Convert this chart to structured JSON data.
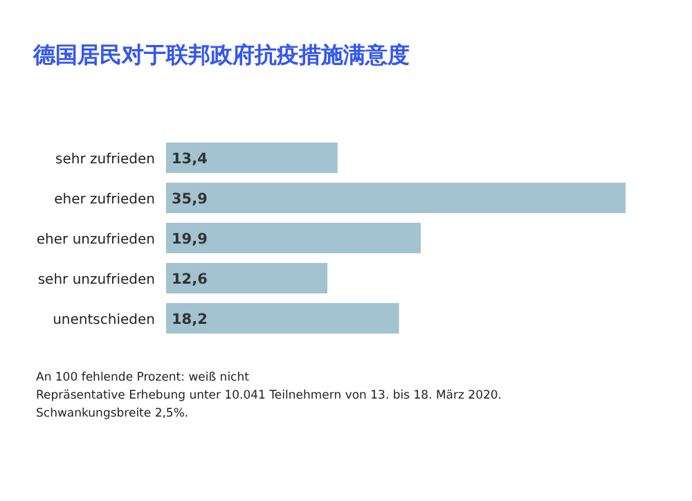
{
  "chart_data": {
    "type": "bar",
    "orientation": "horizontal",
    "title": "德国居民对于联邦政府抗疫措施满意度",
    "categories": [
      "sehr zufrieden",
      "eher zufrieden",
      "eher unzufrieden",
      "sehr unzufrieden",
      "unentschieden"
    ],
    "values": [
      13.4,
      35.9,
      19.9,
      12.6,
      18.2
    ],
    "value_labels": [
      "13,4",
      "35,9",
      "19,9",
      "12,6",
      "18,2"
    ],
    "color": "#a3c3d0",
    "annotations": [
      "An 100 fehlende Prozent: weiß nicht",
      "Repräsentative Erhebung unter 10.041 Teilnehmern von 13. bis 18. März 2020.",
      "Schwankungsbreite 2,5%."
    ]
  }
}
